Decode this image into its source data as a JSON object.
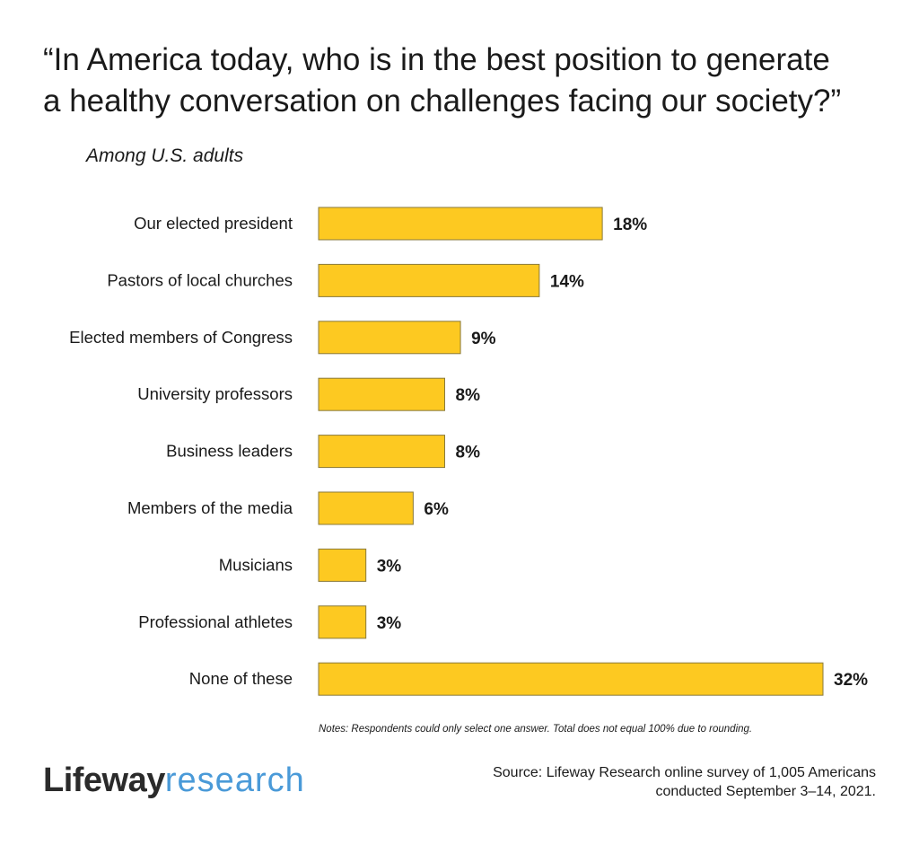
{
  "title": {
    "line1": "“In America today, who is in the best position to generate",
    "line2": "a healthy conversation on challenges facing our society?”"
  },
  "subtitle": "Among U.S. adults",
  "chart_data": {
    "type": "bar",
    "orientation": "horizontal",
    "categories": [
      "Our elected president",
      "Pastors of local churches",
      "Elected members of Congress",
      "University professors",
      "Business leaders",
      "Members of the media",
      "Musicians",
      "Professional athletes",
      "None of these"
    ],
    "values": [
      18,
      14,
      9,
      8,
      8,
      6,
      3,
      3,
      32
    ],
    "value_labels": [
      "18%",
      "14%",
      "9%",
      "8%",
      "8%",
      "6%",
      "3%",
      "3%",
      "32%"
    ],
    "unit": "%",
    "xlim": [
      0,
      32
    ],
    "bar_color": "#FDC921",
    "bar_outline": "#8a7a3a",
    "grid": false,
    "legend": "none"
  },
  "notes": "Notes: Respondents could only select one answer. Total does not equal 100% due to rounding.",
  "logo": {
    "part1": "Lifeway",
    "part2": "research"
  },
  "source": {
    "line1": "Source: Lifeway Research online survey of 1,005 Americans",
    "line2": "conducted September 3–14, 2021."
  }
}
